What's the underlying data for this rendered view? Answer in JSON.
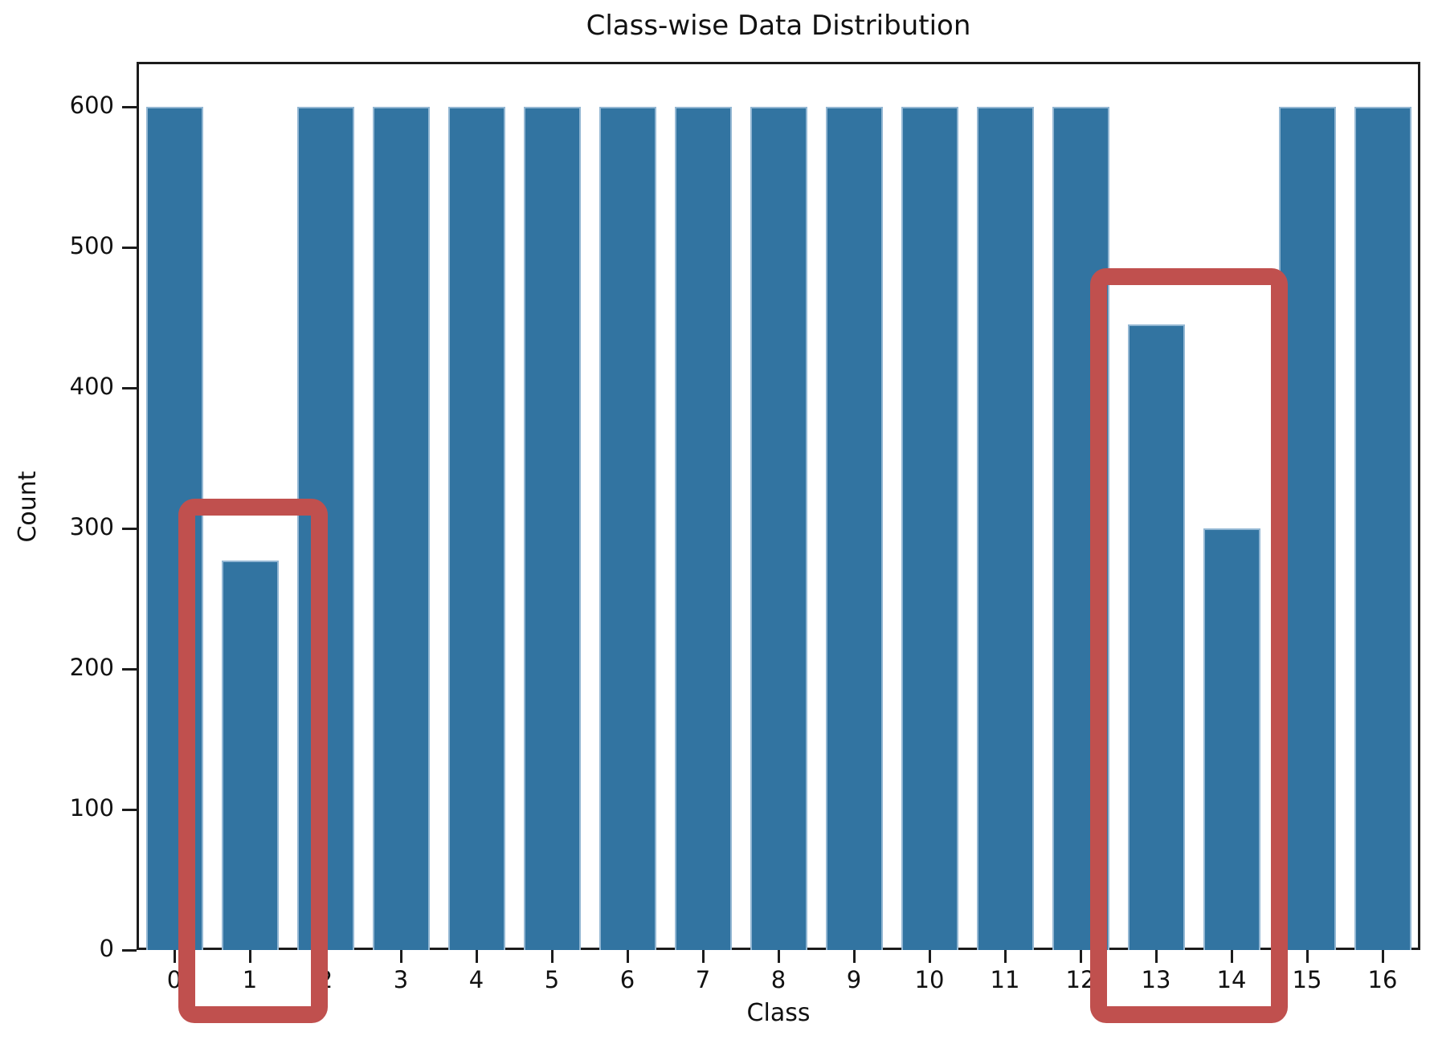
{
  "chart_data": {
    "type": "bar",
    "title": "Class-wise Data Distribution",
    "xlabel": "Class",
    "ylabel": "Count",
    "categories": [
      "0",
      "1",
      "2",
      "3",
      "4",
      "5",
      "6",
      "7",
      "8",
      "9",
      "10",
      "11",
      "12",
      "13",
      "14",
      "15",
      "16"
    ],
    "values": [
      600,
      277,
      600,
      600,
      600,
      600,
      600,
      600,
      600,
      600,
      600,
      600,
      600,
      445,
      300,
      600,
      600
    ],
    "ylim": [
      0,
      632
    ],
    "yticks": [
      0,
      100,
      200,
      300,
      400,
      500,
      600
    ],
    "grid": false,
    "legend": null,
    "bar_color": "#3274a1",
    "bar_edge_color": "#93b7d3",
    "axis_color": "#1c1c1c",
    "text_color": "#111111",
    "annotations": [
      {
        "type": "rect",
        "label": "highlight-class-1",
        "x0": 0.05,
        "x1": 2.03,
        "y0": -52,
        "y1": 321,
        "color": "#c0504e"
      },
      {
        "type": "rect",
        "label": "highlight-classes-13-14",
        "x0": 12.13,
        "x1": 14.74,
        "y0": -52,
        "y1": 485,
        "color": "#c0504e"
      }
    ]
  }
}
